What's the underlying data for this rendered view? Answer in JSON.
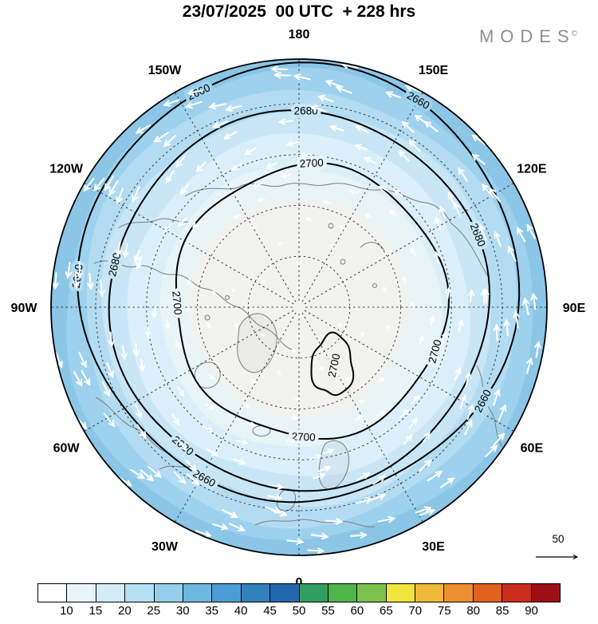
{
  "header": {
    "title": "23/07/2025  00 UTC  + 228 hrs",
    "brand": "MODES",
    "brand_sup": "©"
  },
  "map": {
    "bands": [
      {
        "f": 1.0,
        "color": "#8bc6e7"
      },
      {
        "f": 0.945,
        "color": "#9ed1ee"
      },
      {
        "f": 0.875,
        "color": "#b3dcf2"
      },
      {
        "f": 0.79,
        "color": "#c8e6f6"
      },
      {
        "f": 0.69,
        "color": "#dbeffa"
      },
      {
        "f": 0.565,
        "color": "#e9f4f7"
      },
      {
        "f": 0.44,
        "color": "#f2f3ef"
      }
    ],
    "contours": {
      "outer": "2660",
      "middle": "2680",
      "inner": "2700"
    },
    "longitude_labels": [
      {
        "text": "180",
        "angle": 0
      },
      {
        "text": "150E",
        "angle": 30
      },
      {
        "text": "120E",
        "angle": 60
      },
      {
        "text": "90E",
        "angle": 90
      },
      {
        "text": "60E",
        "angle": 120
      },
      {
        "text": "30E",
        "angle": 150
      },
      {
        "text": "0",
        "angle": 180
      },
      {
        "text": "30W",
        "angle": 210
      },
      {
        "text": "60W",
        "angle": 240
      },
      {
        "text": "90W",
        "angle": 270
      },
      {
        "text": "120W",
        "angle": 300
      },
      {
        "text": "150W",
        "angle": 330
      }
    ],
    "wind_scale_label": "50"
  },
  "chart_data": {
    "type": "heatmap",
    "title": "23/07/2025  00 UTC  + 228 hrs",
    "projection": "north-polar-stereographic",
    "contour_levels": [
      2660,
      2680,
      2700
    ],
    "longitude_ring_labels": [
      "180",
      "150W",
      "150E",
      "120W",
      "120E",
      "90W",
      "90E",
      "60W",
      "60E",
      "30W",
      "30E",
      "0"
    ],
    "colorbar_tick_labels": [
      10,
      15,
      20,
      25,
      30,
      35,
      40,
      45,
      50,
      55,
      60,
      65,
      70,
      75,
      80,
      85,
      90
    ],
    "colorbar_colors": [
      "#ffffff",
      "#e8f5fb",
      "#d2ecf8",
      "#b5e0f4",
      "#93cfec",
      "#6db8e0",
      "#4a9cd3",
      "#3180c0",
      "#2368ac",
      "#2f9e5f",
      "#4fb54a",
      "#7cc34d",
      "#f2e33f",
      "#f0b93a",
      "#ec8f2f",
      "#e2611f",
      "#cb2d1d",
      "#9e0f15"
    ],
    "reference_arrow_value": 50,
    "brand": "MODES©"
  }
}
